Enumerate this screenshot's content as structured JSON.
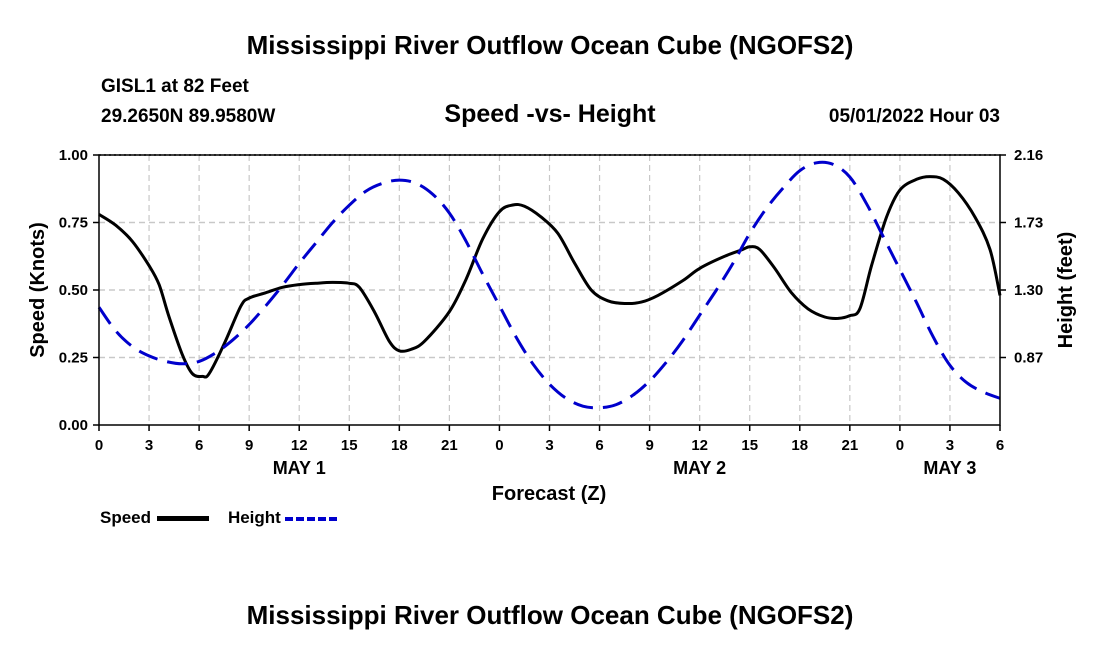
{
  "page": {
    "title": "Mississippi River Outflow Ocean Cube (NGOFS2)",
    "footer_title": "Mississippi River Outflow Ocean Cube (NGOFS2)"
  },
  "header": {
    "station": "GISL1 at 82 Feet",
    "coords": "29.2650N  89.9580W",
    "subtitle": "Speed -vs- Height",
    "datetime": "05/01/2022 Hour 03"
  },
  "legend": {
    "speed_label": "Speed",
    "height_label": "Height"
  },
  "colors": {
    "speed": "#000000",
    "height": "#0000cc",
    "grid": "#c8c8c8"
  },
  "chart_data": {
    "type": "line",
    "xlabel": "Forecast (Z)",
    "ylabel_left": "Speed (Knots)",
    "ylabel_right": "Height (feet)",
    "x_range_hours": [
      0,
      54
    ],
    "x_ticks": [
      {
        "hour": 0,
        "label": "0"
      },
      {
        "hour": 3,
        "label": "3"
      },
      {
        "hour": 6,
        "label": "6"
      },
      {
        "hour": 9,
        "label": "9"
      },
      {
        "hour": 12,
        "label": "12"
      },
      {
        "hour": 15,
        "label": "15"
      },
      {
        "hour": 18,
        "label": "18"
      },
      {
        "hour": 21,
        "label": "21"
      },
      {
        "hour": 24,
        "label": "0"
      },
      {
        "hour": 27,
        "label": "3"
      },
      {
        "hour": 30,
        "label": "6"
      },
      {
        "hour": 33,
        "label": "9"
      },
      {
        "hour": 36,
        "label": "12"
      },
      {
        "hour": 39,
        "label": "15"
      },
      {
        "hour": 42,
        "label": "18"
      },
      {
        "hour": 45,
        "label": "21"
      },
      {
        "hour": 48,
        "label": "0"
      },
      {
        "hour": 51,
        "label": "3"
      },
      {
        "hour": 54,
        "label": "6"
      }
    ],
    "day_labels": [
      {
        "hour": 12,
        "label": "MAY 1"
      },
      {
        "hour": 36,
        "label": "MAY 2"
      },
      {
        "hour": 51,
        "label": "MAY 3"
      }
    ],
    "left_axis": {
      "min": 0,
      "max": 1.0,
      "ticks": [
        "0.00",
        "0.25",
        "0.50",
        "0.75",
        "1.00"
      ]
    },
    "right_axis": {
      "min": 0.44,
      "max": 2.16,
      "ticks": [
        "0.87",
        "1.30",
        "1.73",
        "2.16"
      ]
    },
    "grid": true,
    "series": [
      {
        "name": "Speed",
        "axis": "left",
        "style": "solid",
        "points": [
          [
            0,
            0.78
          ],
          [
            1,
            0.74
          ],
          [
            2,
            0.68
          ],
          [
            3,
            0.59
          ],
          [
            3.6,
            0.52
          ],
          [
            4.2,
            0.4
          ],
          [
            5,
            0.26
          ],
          [
            5.6,
            0.19
          ],
          [
            6.2,
            0.18
          ],
          [
            6.6,
            0.19
          ],
          [
            7.5,
            0.3
          ],
          [
            8.5,
            0.44
          ],
          [
            9,
            0.47
          ],
          [
            10,
            0.49
          ],
          [
            11,
            0.51
          ],
          [
            12,
            0.52
          ],
          [
            13,
            0.525
          ],
          [
            14,
            0.528
          ],
          [
            15,
            0.525
          ],
          [
            15.6,
            0.51
          ],
          [
            16.5,
            0.42
          ],
          [
            17.4,
            0.31
          ],
          [
            18,
            0.275
          ],
          [
            18.7,
            0.28
          ],
          [
            19.5,
            0.31
          ],
          [
            21,
            0.42
          ],
          [
            22,
            0.54
          ],
          [
            23,
            0.69
          ],
          [
            24,
            0.79
          ],
          [
            24.8,
            0.815
          ],
          [
            25.5,
            0.81
          ],
          [
            26.5,
            0.77
          ],
          [
            27.5,
            0.71
          ],
          [
            28.5,
            0.6
          ],
          [
            29.5,
            0.5
          ],
          [
            30.5,
            0.46
          ],
          [
            31.5,
            0.45
          ],
          [
            32.5,
            0.455
          ],
          [
            33.5,
            0.48
          ],
          [
            35,
            0.535
          ],
          [
            36,
            0.58
          ],
          [
            37.5,
            0.625
          ],
          [
            38.5,
            0.648
          ],
          [
            39,
            0.66
          ],
          [
            39.6,
            0.65
          ],
          [
            40.5,
            0.58
          ],
          [
            41.5,
            0.49
          ],
          [
            42.5,
            0.43
          ],
          [
            43.5,
            0.4
          ],
          [
            44.3,
            0.395
          ],
          [
            45,
            0.405
          ],
          [
            45.6,
            0.43
          ],
          [
            46.3,
            0.59
          ],
          [
            47.2,
            0.77
          ],
          [
            48,
            0.87
          ],
          [
            49,
            0.91
          ],
          [
            49.8,
            0.92
          ],
          [
            50.6,
            0.91
          ],
          [
            51.5,
            0.86
          ],
          [
            52.5,
            0.77
          ],
          [
            53.4,
            0.65
          ],
          [
            54,
            0.48
          ]
        ]
      },
      {
        "name": "Height",
        "axis": "right",
        "style": "dashed",
        "points": [
          [
            0,
            1.19
          ],
          [
            1,
            1.04
          ],
          [
            2,
            0.94
          ],
          [
            3,
            0.88
          ],
          [
            4,
            0.845
          ],
          [
            5,
            0.83
          ],
          [
            6,
            0.845
          ],
          [
            7,
            0.9
          ],
          [
            8,
            0.98
          ],
          [
            9,
            1.08
          ],
          [
            10,
            1.2
          ],
          [
            11,
            1.33
          ],
          [
            12,
            1.47
          ],
          [
            13,
            1.6
          ],
          [
            14,
            1.73
          ],
          [
            15,
            1.84
          ],
          [
            16,
            1.93
          ],
          [
            17,
            1.98
          ],
          [
            18,
            2.0
          ],
          [
            19,
            1.98
          ],
          [
            20,
            1.91
          ],
          [
            21,
            1.79
          ],
          [
            22,
            1.61
          ],
          [
            23,
            1.4
          ],
          [
            24,
            1.2
          ],
          [
            25,
            1.0
          ],
          [
            26,
            0.83
          ],
          [
            27,
            0.7
          ],
          [
            28,
            0.61
          ],
          [
            29,
            0.56
          ],
          [
            30,
            0.55
          ],
          [
            31,
            0.57
          ],
          [
            32,
            0.63
          ],
          [
            33,
            0.72
          ],
          [
            34,
            0.84
          ],
          [
            35,
            0.98
          ],
          [
            36,
            1.14
          ],
          [
            37,
            1.3
          ],
          [
            38,
            1.47
          ],
          [
            39,
            1.66
          ],
          [
            40,
            1.82
          ],
          [
            41,
            1.95
          ],
          [
            42,
            2.06
          ],
          [
            43,
            2.11
          ],
          [
            44,
            2.1
          ],
          [
            45,
            2.02
          ],
          [
            46,
            1.85
          ],
          [
            47,
            1.64
          ],
          [
            48,
            1.43
          ],
          [
            49,
            1.22
          ],
          [
            50,
            1.0
          ],
          [
            51,
            0.82
          ],
          [
            52,
            0.71
          ],
          [
            53,
            0.65
          ],
          [
            54,
            0.61
          ]
        ]
      }
    ]
  }
}
